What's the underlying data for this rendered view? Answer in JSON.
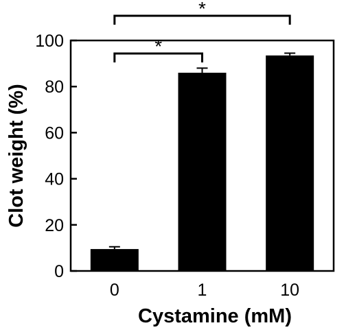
{
  "chart_data": {
    "type": "bar",
    "xlabel": "Cystamine (mM)",
    "ylabel": "Clot weight (%)",
    "ylim": [
      0,
      100
    ],
    "yticks": [
      0,
      20,
      40,
      60,
      80,
      100
    ],
    "categories": [
      "0",
      "1",
      "10"
    ],
    "values": [
      9.5,
      86,
      93.5
    ],
    "errors": [
      1.0,
      2.0,
      1.0
    ],
    "bar_color": "#000000",
    "significance": [
      {
        "from": "0",
        "to": "1",
        "label": "*"
      },
      {
        "from": "0",
        "to": "10",
        "label": "*"
      }
    ]
  }
}
